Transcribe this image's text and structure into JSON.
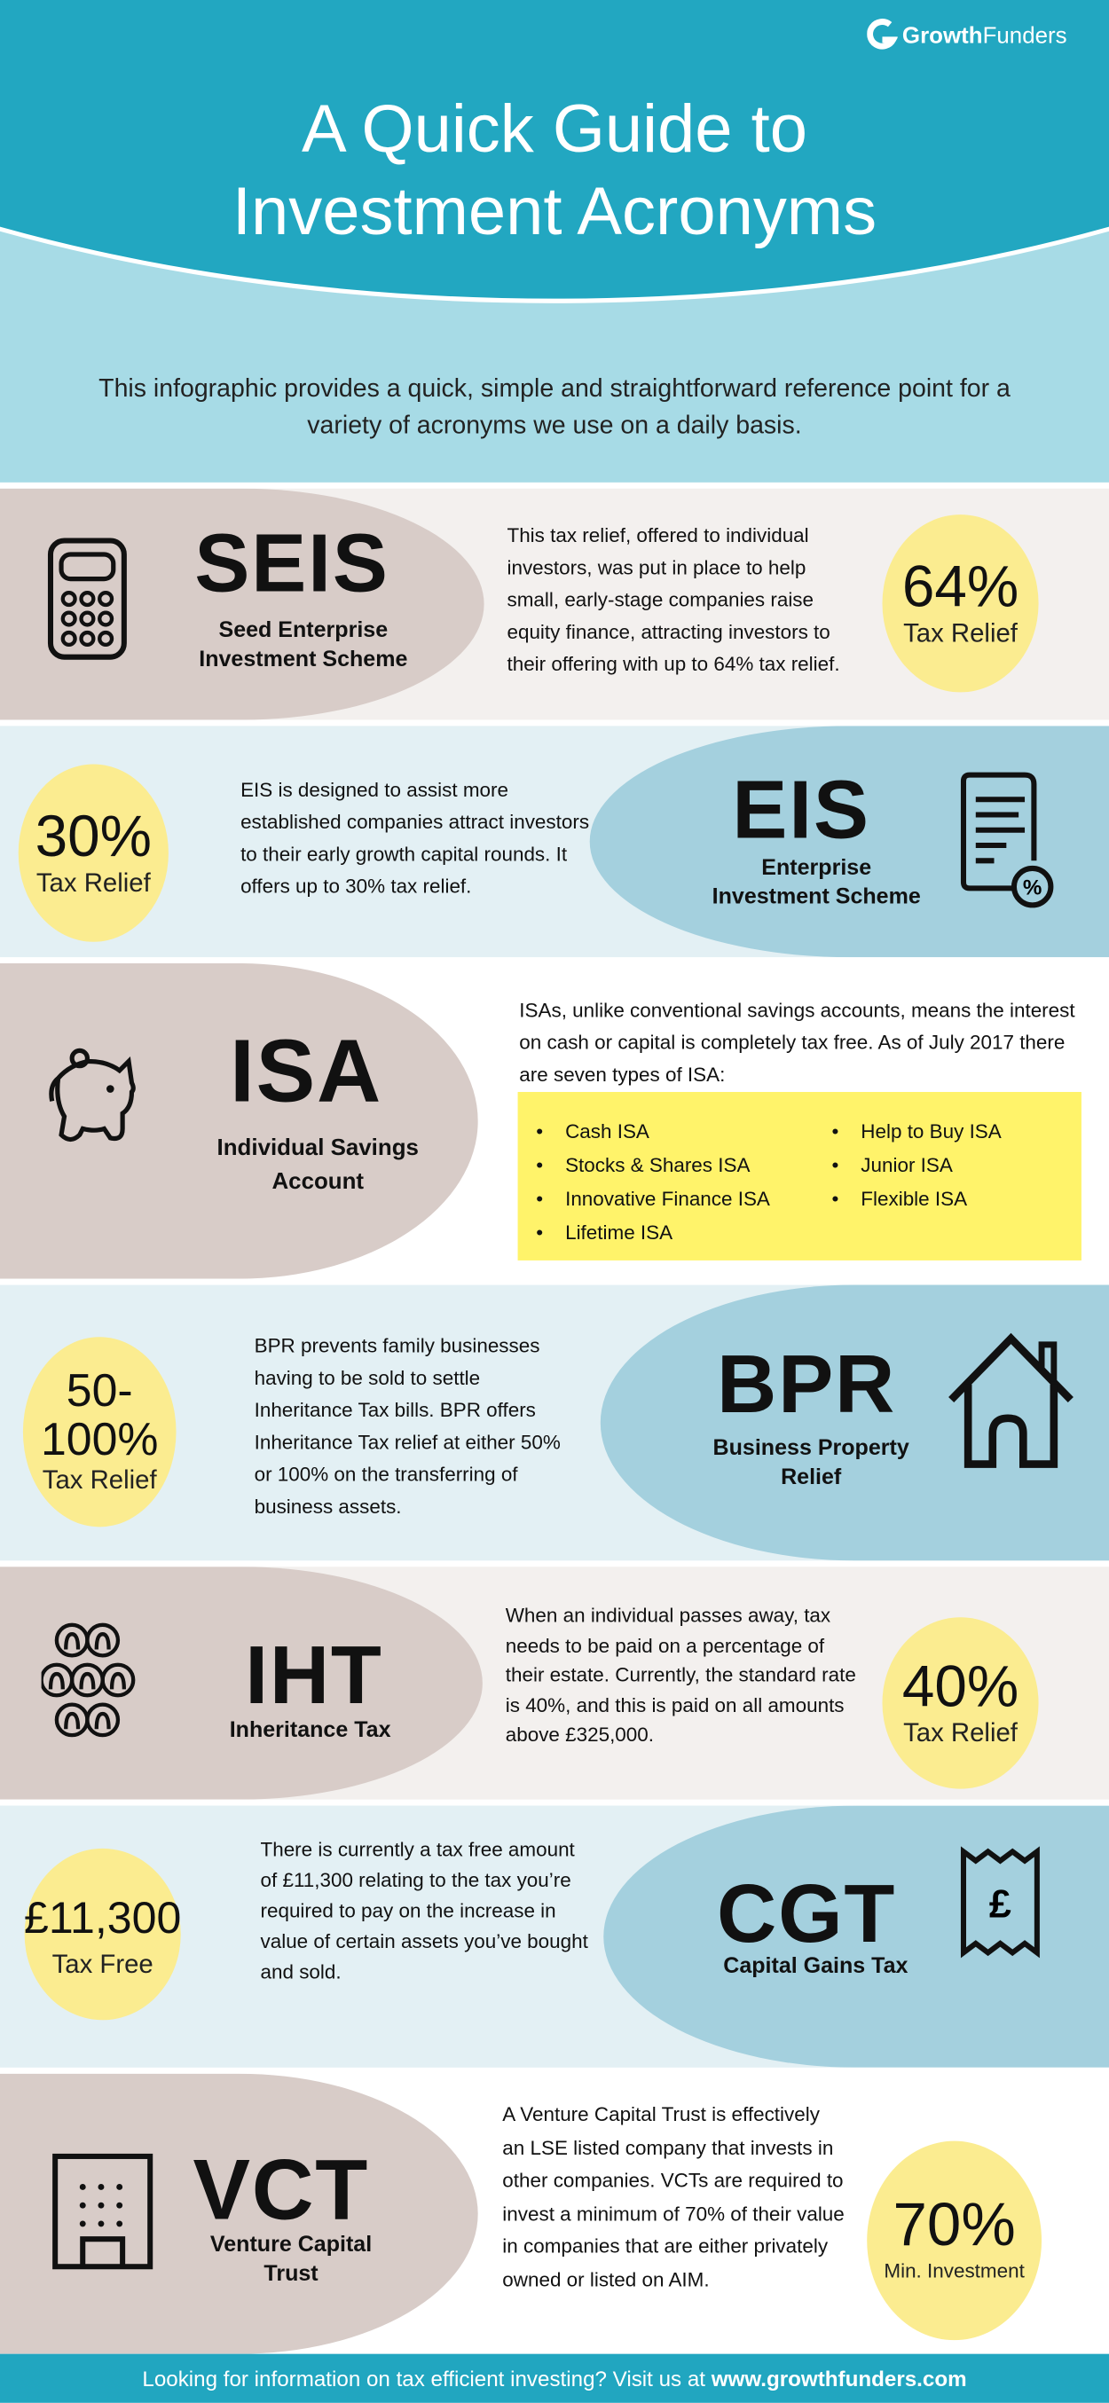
{
  "header": {
    "brand": "GrowthFunders",
    "brand_bold": "Growth",
    "brand_light": "Funders",
    "title_line1": "A Quick Guide to",
    "title_line2": "Investment Acronyms",
    "intro": "This infographic provides a quick, simple and straightforward reference point for a variety of acronyms we use on a daily basis."
  },
  "colors": {
    "header": "#22a7c1",
    "header_light": "#a7dbe6",
    "pill_beige": "#d8ccc8",
    "pill_blue": "#a4d0de",
    "circle_yellow": "#fbec90",
    "isa_box": "#fff36a"
  },
  "sections": [
    {
      "acronym": "SEIS",
      "name": "Seed Enterprise Investment Scheme",
      "icon": "calculator-icon",
      "description": "This tax relief, offered to individual investors, was put in place to help small, early-stage companies raise equity finance, attracting investors to their offering with up to 64% tax relief.",
      "stat": "64%",
      "stat_label": "Tax Relief"
    },
    {
      "acronym": "EIS",
      "name": "Enterprise Investment Scheme",
      "icon": "document-percent-icon",
      "description": "EIS is designed to assist more established companies attract investors to their early growth capital rounds. It offers up to 30% tax relief.",
      "stat": "30%",
      "stat_label": "Tax Relief"
    },
    {
      "acronym": "ISA",
      "name": "Individual Savings Account",
      "icon": "piggy-bank-icon",
      "description": "ISAs, unlike conventional savings accounts, means the interest on cash or capital is completely tax free. As of July 2017 there are seven types of ISA:",
      "types": [
        "Cash ISA",
        "Stocks & Shares ISA",
        "Innovative Finance ISA",
        "Lifetime ISA",
        "Help to Buy ISA",
        "Junior ISA",
        "Flexible ISA"
      ]
    },
    {
      "acronym": "BPR",
      "name": "Business Property Relief",
      "icon": "house-icon",
      "description": "BPR prevents family businesses having to be sold to settle Inheritance Tax bills. BPR offers Inheritance Tax relief at either 50% or 100% on the transferring of business assets.",
      "stat_line1": "50-",
      "stat_line2": "100%",
      "stat_label": "Tax Relief"
    },
    {
      "acronym": "IHT",
      "name": "Inheritance Tax",
      "icon": "family-tree-icon",
      "description": "When an individual passes away, tax needs to be paid on a percentage of their estate. Currently, the standard rate is 40%, and this is paid on all amounts above £325,000.",
      "stat": "40%",
      "stat_label": "Tax Relief"
    },
    {
      "acronym": "CGT",
      "name": "Capital Gains Tax",
      "icon": "pound-receipt-icon",
      "description": "There is currently a tax free amount of £11,300 relating to the tax you’re required to pay on the increase in value of certain assets you’ve bought and sold.",
      "stat": "£11,300",
      "stat_label": "Tax Free"
    },
    {
      "acronym": "VCT",
      "name": "Venture Capital Trust",
      "icon": "office-building-icon",
      "description": "A Venture Capital Trust is effectively an LSE listed company that invests in other companies. VCTs are required to invest a minimum of 70% of their value in companies that are either privately owned or listed on AIM.",
      "stat": "70%",
      "stat_label": "Min. Investment"
    }
  ],
  "footer": {
    "text": "Looking for information on tax efficient investing? Visit us at",
    "link": "www.growthfunders.com"
  }
}
